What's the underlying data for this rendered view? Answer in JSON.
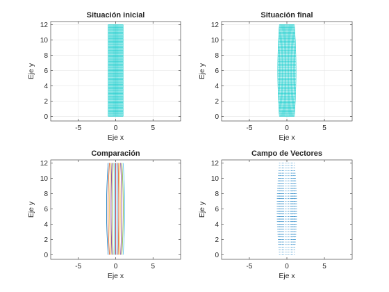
{
  "chart_data": [
    {
      "type": "mesh",
      "title": "Situación inicial",
      "xlabel": "Eje x",
      "ylabel": "Eje y",
      "xlim": [
        -8.7,
        8.7
      ],
      "ylim": [
        -0.6,
        12.4
      ],
      "xticks": [
        -5,
        0,
        5
      ],
      "yticks": [
        0,
        2,
        4,
        6,
        8,
        10,
        12
      ],
      "grid": true,
      "color": "#00c8c8",
      "x_range": [
        -1,
        1
      ],
      "y_range": [
        0,
        12
      ],
      "bulge": 0
    },
    {
      "type": "mesh",
      "title": "Situación final",
      "xlabel": "Eje x",
      "ylabel": "Eje y",
      "xlim": [
        -8.7,
        8.7
      ],
      "ylim": [
        -0.6,
        12.4
      ],
      "xticks": [
        -5,
        0,
        5
      ],
      "yticks": [
        0,
        2,
        4,
        6,
        8,
        10,
        12
      ],
      "grid": true,
      "color": "#00c8c8",
      "x_range": [
        -1,
        1
      ],
      "y_range": [
        0,
        12
      ],
      "bulge": 0.22
    },
    {
      "type": "line",
      "title": "Comparación",
      "xlabel": "Eje x",
      "ylabel": "Eje y",
      "xlim": [
        -8.7,
        8.7
      ],
      "ylim": [
        -0.6,
        12.4
      ],
      "xticks": [
        -5,
        0,
        5
      ],
      "yticks": [
        0,
        2,
        4,
        6,
        8,
        10,
        12
      ],
      "grid": false,
      "x_range": [
        -1,
        1
      ],
      "y_range": [
        0,
        12
      ],
      "bulge": 0.22,
      "series_colors": [
        "#0072bd",
        "#d95319",
        "#edb120",
        "#7e2f8e",
        "#77ac30",
        "#4dbeee",
        "#a2142f"
      ]
    },
    {
      "type": "quiver",
      "title": "Campo de Vectores",
      "xlabel": "Eje x",
      "ylabel": "Eje y",
      "xlim": [
        -8.7,
        8.7
      ],
      "ylim": [
        -0.6,
        12.4
      ],
      "xticks": [
        -5,
        0,
        5
      ],
      "yticks": [
        0,
        2,
        4,
        6,
        8,
        10,
        12
      ],
      "grid": false,
      "color": "#0072bd",
      "x_range": [
        -1,
        1
      ],
      "y_range": [
        0,
        12
      ],
      "bulge": 0.22
    }
  ]
}
